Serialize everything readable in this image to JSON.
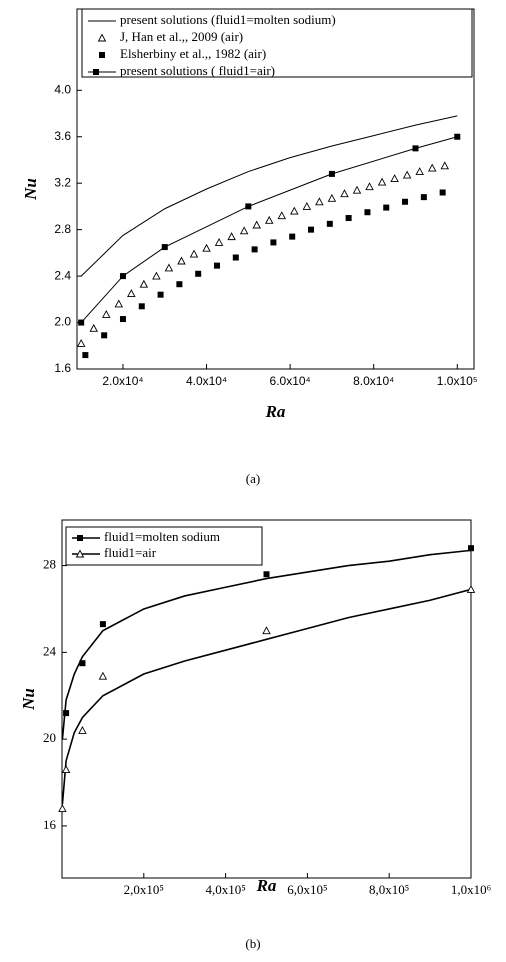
{
  "chart_data": [
    {
      "type": "line",
      "caption": "(a)",
      "x_label": "Ra",
      "y_label": "Nu",
      "xlim": [
        9000,
        104000
      ],
      "xticks": [
        {
          "value": 20000,
          "label": "2.0x10⁴"
        },
        {
          "value": 40000,
          "label": "4.0x10⁴"
        },
        {
          "value": 60000,
          "label": "6.0x10⁴"
        },
        {
          "value": 80000,
          "label": "8.0x10⁴"
        },
        {
          "value": 100000,
          "label": "1.0x10⁵"
        }
      ],
      "ylim": [
        1.6,
        4.7
      ],
      "yticks": [
        1.6,
        {
          "value": 2,
          "label": "2.0"
        },
        2.4,
        2.8,
        3.2,
        3.6,
        {
          "value": 4,
          "label": "4.0"
        }
      ],
      "series": [
        {
          "name": "present solutions (fluid1=molten sodium)",
          "color": "#000000",
          "marker": "none",
          "line": true,
          "x": [
            10000,
            20000,
            30000,
            40000,
            50000,
            60000,
            70000,
            80000,
            90000,
            100000
          ],
          "values": [
            2.4,
            2.75,
            2.98,
            3.15,
            3.3,
            3.42,
            3.52,
            3.61,
            3.7,
            3.78
          ]
        },
        {
          "name": "J, Han et al.,, 2009 (air)",
          "color": "#000000",
          "marker": "triangle",
          "line": false,
          "x": [
            10000,
            13000,
            16000,
            19000,
            22000,
            25000,
            28000,
            31000,
            34000,
            37000,
            40000,
            43000,
            46000,
            49000,
            52000,
            55000,
            58000,
            61000,
            64000,
            67000,
            70000,
            73000,
            76000,
            79000,
            82000,
            85000,
            88000,
            91000,
            94000,
            97000
          ],
          "values": [
            1.82,
            1.95,
            2.07,
            2.16,
            2.25,
            2.33,
            2.4,
            2.47,
            2.53,
            2.59,
            2.64,
            2.69,
            2.74,
            2.79,
            2.84,
            2.88,
            2.92,
            2.96,
            3.0,
            3.04,
            3.07,
            3.11,
            3.14,
            3.17,
            3.21,
            3.24,
            3.27,
            3.3,
            3.33,
            3.35
          ]
        },
        {
          "name": "Elsherbiny et al.,, 1982 (air)",
          "color": "#000000",
          "marker": "square",
          "line": false,
          "x": [
            11000,
            15500,
            20000,
            24500,
            29000,
            33500,
            38000,
            42500,
            47000,
            51500,
            56000,
            60500,
            65000,
            69500,
            74000,
            78500,
            83000,
            87500,
            92000,
            96500
          ],
          "values": [
            1.72,
            1.89,
            2.03,
            2.14,
            2.24,
            2.33,
            2.42,
            2.49,
            2.56,
            2.63,
            2.69,
            2.74,
            2.8,
            2.85,
            2.9,
            2.95,
            2.99,
            3.04,
            3.08,
            3.12
          ]
        },
        {
          "name": "present solutions ( fluid1=air)",
          "color": "#000000",
          "marker": "square",
          "line": true,
          "x": [
            10000,
            20000,
            30000,
            50000,
            70000,
            90000,
            100000
          ],
          "values": [
            2.0,
            2.4,
            2.65,
            3.0,
            3.28,
            3.5,
            3.6
          ]
        }
      ]
    },
    {
      "type": "line",
      "caption": "(b)",
      "x_label": "Ra",
      "y_label": "Nu",
      "xlim": [
        0,
        1000000
      ],
      "xticks": [
        {
          "value": 200000,
          "label": "2,0x10⁵"
        },
        {
          "value": 400000,
          "label": "4,0x10⁵"
        },
        {
          "value": 600000,
          "label": "6,0x10⁵"
        },
        {
          "value": 800000,
          "label": "8,0x10⁵"
        },
        {
          "value": 1000000,
          "label": "1,0x10⁶"
        }
      ],
      "ylim": [
        13.6,
        30.1
      ],
      "yticks": [
        16,
        20,
        24,
        28
      ],
      "series": [
        {
          "name": "fluid1=molten sodium",
          "color": "#000000",
          "marker": "square",
          "line": true,
          "x": [
            10000,
            50000,
            100000,
            500000,
            1000000
          ],
          "values": [
            21.2,
            23.5,
            25.3,
            27.6,
            28.8
          ],
          "fit_x": [
            1000,
            10000,
            30000,
            50000,
            100000,
            200000,
            300000,
            400000,
            500000,
            600000,
            700000,
            800000,
            900000,
            1000000
          ],
          "fit_values": [
            20.0,
            21.8,
            23.0,
            23.8,
            25.0,
            26.0,
            26.6,
            27.0,
            27.4,
            27.7,
            28.0,
            28.2,
            28.5,
            28.7
          ]
        },
        {
          "name": "fluid1=air",
          "color": "#000000",
          "marker": "triangle",
          "line": true,
          "x": [
            1000,
            10000,
            50000,
            100000,
            500000,
            1000000
          ],
          "values": [
            16.8,
            18.6,
            20.4,
            22.9,
            25.0,
            26.9
          ],
          "fit_x": [
            1000,
            10000,
            30000,
            50000,
            100000,
            200000,
            300000,
            400000,
            500000,
            600000,
            700000,
            800000,
            900000,
            1000000
          ],
          "fit_values": [
            17.0,
            19.0,
            20.3,
            21.0,
            22.0,
            23.0,
            23.6,
            24.1,
            24.6,
            25.1,
            25.6,
            26.0,
            26.4,
            26.9
          ]
        }
      ]
    }
  ]
}
